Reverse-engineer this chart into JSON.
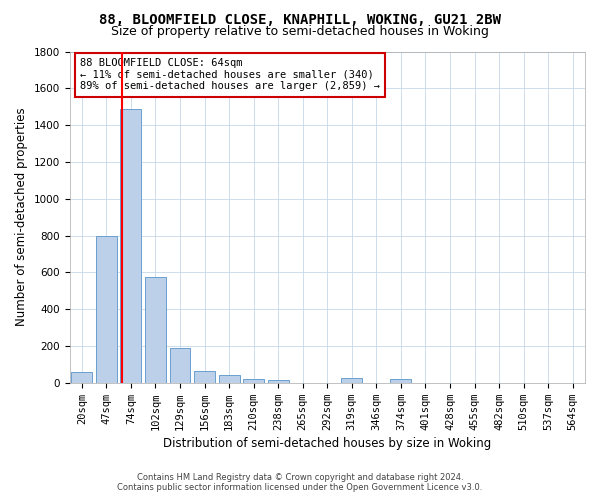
{
  "title": "88, BLOOMFIELD CLOSE, KNAPHILL, WOKING, GU21 2BW",
  "subtitle": "Size of property relative to semi-detached houses in Woking",
  "xlabel": "Distribution of semi-detached houses by size in Woking",
  "ylabel": "Number of semi-detached properties",
  "footer_line1": "Contains HM Land Registry data © Crown copyright and database right 2024.",
  "footer_line2": "Contains public sector information licensed under the Open Government Licence v3.0.",
  "annotation_line1": "88 BLOOMFIELD CLOSE: 64sqm",
  "annotation_line2": "← 11% of semi-detached houses are smaller (340)",
  "annotation_line3": "89% of semi-detached houses are larger (2,859) →",
  "bar_color": "#bdd0e9",
  "bar_edge_color": "#6a9fd0",
  "red_line_x": 64,
  "categories": [
    "20sqm",
    "47sqm",
    "74sqm",
    "102sqm",
    "129sqm",
    "156sqm",
    "183sqm",
    "210sqm",
    "238sqm",
    "265sqm",
    "292sqm",
    "319sqm",
    "346sqm",
    "374sqm",
    "401sqm",
    "428sqm",
    "455sqm",
    "482sqm",
    "510sqm",
    "537sqm",
    "564sqm"
  ],
  "values": [
    60,
    800,
    1490,
    575,
    190,
    65,
    45,
    20,
    15,
    0,
    0,
    25,
    0,
    20,
    0,
    0,
    0,
    0,
    0,
    0,
    0
  ],
  "ylim": [
    0,
    1800
  ],
  "yticks": [
    0,
    200,
    400,
    600,
    800,
    1000,
    1200,
    1400,
    1600,
    1800
  ],
  "background_color": "#ffffff",
  "grid_color": "#c5d8ea",
  "title_fontsize": 10,
  "subtitle_fontsize": 9,
  "axis_label_fontsize": 8.5,
  "tick_fontsize": 7.5,
  "annotation_fontsize": 7.5,
  "footer_fontsize": 6,
  "annotation_box_color": "#ffffff",
  "annotation_box_edge": "#cc0000"
}
